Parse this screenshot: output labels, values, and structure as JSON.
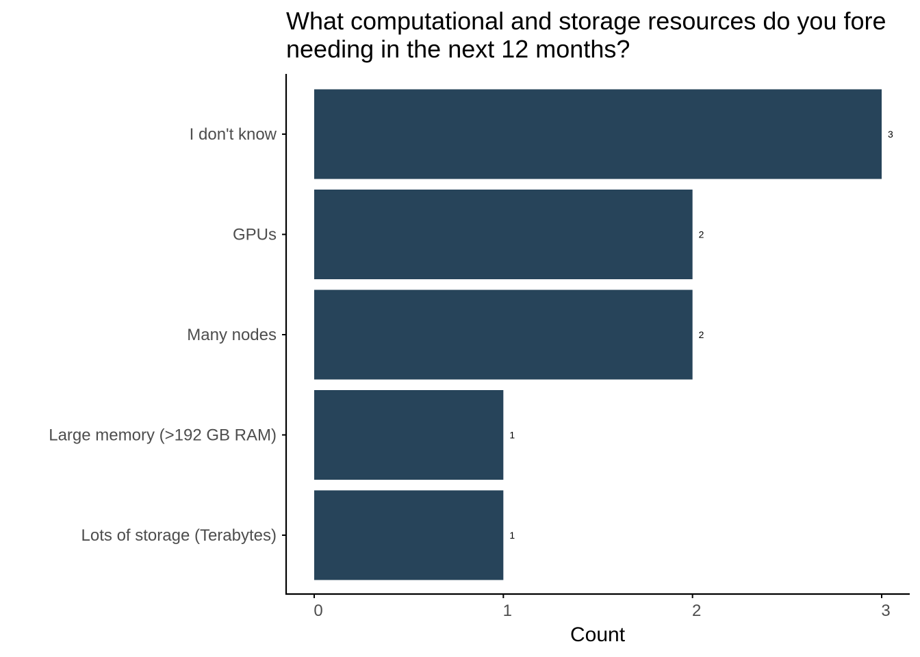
{
  "chart_data": {
    "type": "bar",
    "orientation": "horizontal",
    "title_lines": [
      "What computational and storage resources do you fore",
      "needing in the next 12 months?"
    ],
    "categories": [
      "I don't know",
      "GPUs",
      "Many nodes",
      "Large memory (>192 GB RAM)",
      "Lots of storage (Terabytes)"
    ],
    "values": [
      3,
      2,
      2,
      1,
      1
    ],
    "data_labels": [
      "3",
      "2",
      "2",
      "1",
      "1"
    ],
    "xlabel": "Count",
    "ylabel": "",
    "xlim": [
      0,
      3
    ],
    "x_ticks": [
      "0",
      "1",
      "2",
      "3"
    ],
    "grid": false,
    "colors": {
      "bar": "#27445a",
      "axis": "#000000",
      "tick_text": "#4d4d4d"
    }
  }
}
